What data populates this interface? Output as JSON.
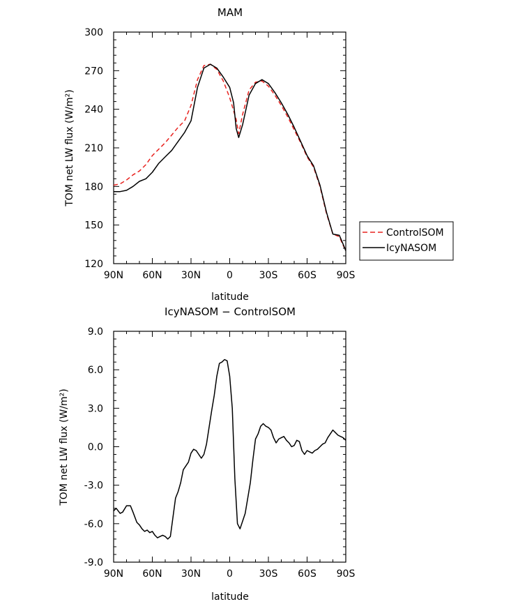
{
  "chart_data": [
    {
      "type": "line",
      "title": "MAM",
      "xlabel": "latitude",
      "ylabel": "TOM net LW flux (W/m²)",
      "xlim": [
        90,
        -90
      ],
      "ylim": [
        120,
        300
      ],
      "xticks": [
        {
          "v": 90,
          "label": "90N"
        },
        {
          "v": 60,
          "label": "60N"
        },
        {
          "v": 30,
          "label": "30N"
        },
        {
          "v": 0,
          "label": "0"
        },
        {
          "v": -30,
          "label": "30S"
        },
        {
          "v": -60,
          "label": "60S"
        },
        {
          "v": -90,
          "label": "90S"
        }
      ],
      "yticks": [
        {
          "v": 120,
          "label": "120"
        },
        {
          "v": 150,
          "label": "150"
        },
        {
          "v": 180,
          "label": "180"
        },
        {
          "v": 210,
          "label": "210"
        },
        {
          "v": 240,
          "label": "240"
        },
        {
          "v": 270,
          "label": "270"
        },
        {
          "v": 300,
          "label": "300"
        }
      ],
      "legend": {
        "placement": "right"
      },
      "series": [
        {
          "name": "ControlSOM",
          "color": "#e8221e",
          "dash": "dashed",
          "x": [
            90,
            85,
            80,
            75,
            70,
            65,
            60,
            55,
            50,
            45,
            40,
            35,
            30,
            25,
            20,
            15,
            10,
            5,
            0,
            -5,
            -7,
            -10,
            -15,
            -20,
            -25,
            -30,
            -35,
            -40,
            -45,
            -50,
            -55,
            -60,
            -65,
            -70,
            -75,
            -80,
            -85,
            -88,
            -90
          ],
          "y": [
            181,
            182,
            185,
            189,
            192,
            197,
            204,
            209,
            214,
            220,
            226,
            231,
            243,
            263,
            274,
            275,
            271,
            262,
            249,
            232,
            221,
            236,
            255,
            261,
            262,
            258,
            251,
            243,
            234,
            224,
            214,
            203,
            195,
            180,
            159,
            143,
            141,
            134,
            131
          ]
        },
        {
          "name": "IcyNASOM",
          "color": "#000000",
          "dash": "solid",
          "x": [
            90,
            85,
            80,
            75,
            70,
            65,
            60,
            55,
            50,
            45,
            40,
            35,
            30,
            25,
            20,
            15,
            10,
            5,
            0,
            -3,
            -5,
            -7,
            -10,
            -15,
            -20,
            -25,
            -30,
            -35,
            -40,
            -45,
            -50,
            -55,
            -60,
            -65,
            -70,
            -75,
            -80,
            -85,
            -88,
            -90
          ],
          "y": [
            176,
            176,
            177,
            180,
            184,
            186,
            191,
            198,
            203,
            208,
            215,
            222,
            231,
            257,
            272,
            275,
            272,
            265,
            257,
            245,
            225,
            218,
            228,
            251,
            260,
            263,
            260,
            253,
            245,
            236,
            226,
            215,
            204,
            196,
            181,
            160,
            143,
            142,
            135,
            130
          ]
        }
      ]
    },
    {
      "type": "line",
      "title": "IcyNASOM − ControlSOM",
      "xlabel": "latitude",
      "ylabel": "TOM net LW flux (W/m²)",
      "xlim": [
        90,
        -90
      ],
      "ylim": [
        -9,
        9
      ],
      "xticks": [
        {
          "v": 90,
          "label": "90N"
        },
        {
          "v": 60,
          "label": "60N"
        },
        {
          "v": 30,
          "label": "30N"
        },
        {
          "v": 0,
          "label": "0"
        },
        {
          "v": -30,
          "label": "30S"
        },
        {
          "v": -60,
          "label": "60S"
        },
        {
          "v": -90,
          "label": "90S"
        }
      ],
      "yticks": [
        {
          "v": -9,
          "label": "-9.0"
        },
        {
          "v": -6,
          "label": "-6.0"
        },
        {
          "v": -3,
          "label": "-3.0"
        },
        {
          "v": 0,
          "label": "0.0"
        },
        {
          "v": 3,
          "label": "3.0"
        },
        {
          "v": 6,
          "label": "6.0"
        },
        {
          "v": 9,
          "label": "9.0"
        }
      ],
      "series": [
        {
          "color": "#000000",
          "dash": "solid",
          "x": [
            90,
            88,
            85,
            83,
            80,
            77,
            75,
            72,
            70,
            68,
            66,
            64,
            62,
            60,
            58,
            56,
            54,
            52,
            50,
            48,
            46,
            44,
            42,
            40,
            38,
            36,
            34,
            32,
            30,
            28,
            26,
            24,
            22,
            20,
            18,
            16,
            14,
            12,
            10,
            8,
            6,
            4,
            2,
            0,
            -2,
            -4,
            -6,
            -8,
            -10,
            -12,
            -14,
            -16,
            -18,
            -20,
            -22,
            -24,
            -26,
            -28,
            -30,
            -32,
            -34,
            -36,
            -38,
            -40,
            -42,
            -44,
            -46,
            -48,
            -50,
            -52,
            -54,
            -56,
            -58,
            -60,
            -62,
            -64,
            -66,
            -68,
            -70,
            -72,
            -74,
            -76,
            -78,
            -80,
            -82,
            -84,
            -86,
            -88,
            -90
          ],
          "y": [
            -5.0,
            -4.8,
            -5.2,
            -5.1,
            -4.6,
            -4.6,
            -5.1,
            -5.9,
            -6.1,
            -6.4,
            -6.6,
            -6.5,
            -6.7,
            -6.6,
            -6.9,
            -7.1,
            -7.0,
            -6.9,
            -7.0,
            -7.2,
            -7.0,
            -5.5,
            -4.0,
            -3.5,
            -2.8,
            -1.8,
            -1.5,
            -1.2,
            -0.5,
            -0.2,
            -0.3,
            -0.6,
            -0.9,
            -0.6,
            0.2,
            1.5,
            2.8,
            4.0,
            5.5,
            6.5,
            6.6,
            6.8,
            6.7,
            5.5,
            3.0,
            -2.5,
            -6.0,
            -6.4,
            -5.8,
            -5.2,
            -4.0,
            -2.8,
            -1.0,
            0.6,
            1.0,
            1.6,
            1.8,
            1.6,
            1.5,
            1.3,
            0.7,
            0.3,
            0.6,
            0.7,
            0.8,
            0.5,
            0.3,
            0.0,
            0.1,
            0.5,
            0.4,
            -0.3,
            -0.6,
            -0.3,
            -0.4,
            -0.5,
            -0.3,
            -0.2,
            0.0,
            0.2,
            0.3,
            0.7,
            1.0,
            1.3,
            1.1,
            0.9,
            0.8,
            0.7,
            0.5
          ]
        }
      ]
    }
  ]
}
